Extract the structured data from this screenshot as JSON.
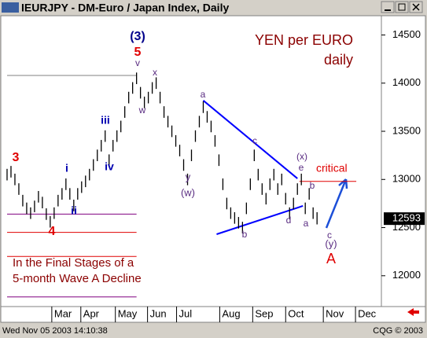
{
  "chart_data": {
    "type": "range-bar",
    "title": "IEURJPY - DM-Euro / Japan Index, Daily",
    "timestamp": "Wed Nov 05 2003 14:10:38",
    "copyright": "CQG © 2003",
    "last_price": 12593,
    "color": "#000000",
    "ylim": [
      11680,
      14700
    ],
    "yticks": [
      12000,
      12500,
      13000,
      13500,
      14000,
      14500
    ],
    "xlim": [
      -1.6,
      95.4
    ],
    "xticks": [
      {
        "value": 11.4,
        "label": "Mar"
      },
      {
        "value": 18.8,
        "label": "Apr"
      },
      {
        "value": 27.6,
        "label": "May"
      },
      {
        "value": 35.8,
        "label": "Jun"
      },
      {
        "value": 43.2,
        "label": "Jul"
      },
      {
        "value": 54.2,
        "label": "Aug"
      },
      {
        "value": 62.6,
        "label": "Sep"
      },
      {
        "value": 71,
        "label": "Oct"
      },
      {
        "value": 80.6,
        "label": "Nov"
      },
      {
        "value": 88.8,
        "label": "Dec"
      }
    ],
    "high": [
      13110,
      13140,
      13060,
      12960,
      12840,
      12760,
      12710,
      12780,
      12880,
      12820,
      12700,
      12620,
      12710,
      12840,
      12910,
      13010,
      12910,
      12790,
      12910,
      12980,
      13040,
      13110,
      13210,
      13310,
      13410,
      13510,
      13260,
      13410,
      13510,
      13610,
      13760,
      13910,
      14010,
      14110,
      13960,
      13860,
      13910,
      14010,
      14060,
      13910,
      13760,
      13660,
      13560,
      13460,
      13360,
      13210,
      13060,
      13310,
      13510,
      13660,
      13810,
      13710,
      13610,
      13460,
      13260,
      13010,
      12810,
      12710,
      12660,
      12610,
      12560,
      12760,
      13010,
      13310,
      13110,
      12960,
      12860,
      13010,
      13110,
      12960,
      13060,
      12860,
      12710,
      12810,
      12960,
      13060,
      12760,
      12910,
      12710,
      12660
    ],
    "low": [
      12990,
      13020,
      12940,
      12840,
      12720,
      12640,
      12590,
      12660,
      12760,
      12700,
      12580,
      12500,
      12590,
      12720,
      12790,
      12890,
      12790,
      12670,
      12790,
      12860,
      12920,
      12990,
      13090,
      13190,
      13290,
      13390,
      13140,
      13290,
      13390,
      13490,
      13640,
      13790,
      13890,
      13990,
      13840,
      13740,
      13790,
      13890,
      13940,
      13790,
      13640,
      13540,
      13440,
      13340,
      13240,
      13090,
      12940,
      13190,
      13390,
      13540,
      13690,
      13590,
      13490,
      13340,
      13140,
      12890,
      12690,
      12590,
      12540,
      12490,
      12440,
      12640,
      12890,
      13190,
      12990,
      12840,
      12740,
      12890,
      12990,
      12840,
      12940,
      12740,
      12590,
      12690,
      12840,
      12940,
      12640,
      12790,
      12590,
      12533
    ],
    "lines": [
      {
        "x": [
          0,
          33
        ],
        "y": [
          14080,
          14080
        ],
        "color": "#808080"
      },
      {
        "x": [
          0,
          33
        ],
        "y": [
          12640,
          12640
        ],
        "color": "#800080"
      },
      {
        "x": [
          0,
          33
        ],
        "y": [
          12450,
          12450
        ],
        "color": "#e00000"
      },
      {
        "x": [
          0,
          33
        ],
        "y": [
          12200,
          12200
        ],
        "color": "#e00000"
      },
      {
        "x": [
          0,
          33
        ],
        "y": [
          11780,
          11780
        ],
        "color": "#800080"
      },
      {
        "x": [
          50,
          74
        ],
        "y": [
          13820,
          13010
        ],
        "color": "#0000ff"
      },
      {
        "x": [
          53.4,
          75.4
        ],
        "y": [
          12431,
          12725
        ],
        "color": "#0000ff"
      },
      {
        "x": [
          74.5,
          89
        ],
        "y": [
          12980,
          12980
        ],
        "color": "#e00000"
      }
    ],
    "annotations": [
      {
        "text": "(3)",
        "color": "#00008b"
      },
      {
        "text": "5",
        "color": "#e00000"
      },
      {
        "text": "v",
        "color": "#5a2d82"
      },
      {
        "text": "x",
        "color": "#5a2d82"
      },
      {
        "text": "w",
        "color": "#5a2d82"
      },
      {
        "text": "iii",
        "color": "#0000b0"
      },
      {
        "text": "iv",
        "color": "#0000b0"
      },
      {
        "text": "i",
        "color": "#0000b0"
      },
      {
        "text": "ii",
        "color": "#0000b0"
      },
      {
        "text": "3",
        "color": "#e00000"
      },
      {
        "text": "4",
        "color": "#e00000"
      },
      {
        "text": "a",
        "color": "#5a2d82"
      },
      {
        "text": "c",
        "color": "#5a2d82"
      },
      {
        "text": "y",
        "color": "#5a2d82"
      },
      {
        "text": "(w)",
        "color": "#5a2d82"
      },
      {
        "text": "b",
        "color": "#5a2d82"
      },
      {
        "text": "(x)",
        "color": "#5a2d82"
      },
      {
        "text": "e",
        "color": "#5a2d82"
      },
      {
        "text": "b",
        "color": "#5a2d82"
      },
      {
        "text": "d",
        "color": "#5a2d82"
      },
      {
        "text": "a",
        "color": "#5a2d82"
      },
      {
        "text": "c",
        "color": "#5a2d82"
      },
      {
        "text": "(y)",
        "color": "#5a2d82"
      },
      {
        "text": "A",
        "color": "#e00000"
      },
      {
        "text": "critical",
        "color": "#e00000"
      },
      {
        "text": "YEN per EURO",
        "color": "#8b0000"
      },
      {
        "text": "daily",
        "color": "#8b0000"
      },
      {
        "text": "In the Final Stages of a",
        "color": "#8b0000"
      },
      {
        "text": "5-month Wave A Decline",
        "color": "#8b0000"
      }
    ]
  }
}
